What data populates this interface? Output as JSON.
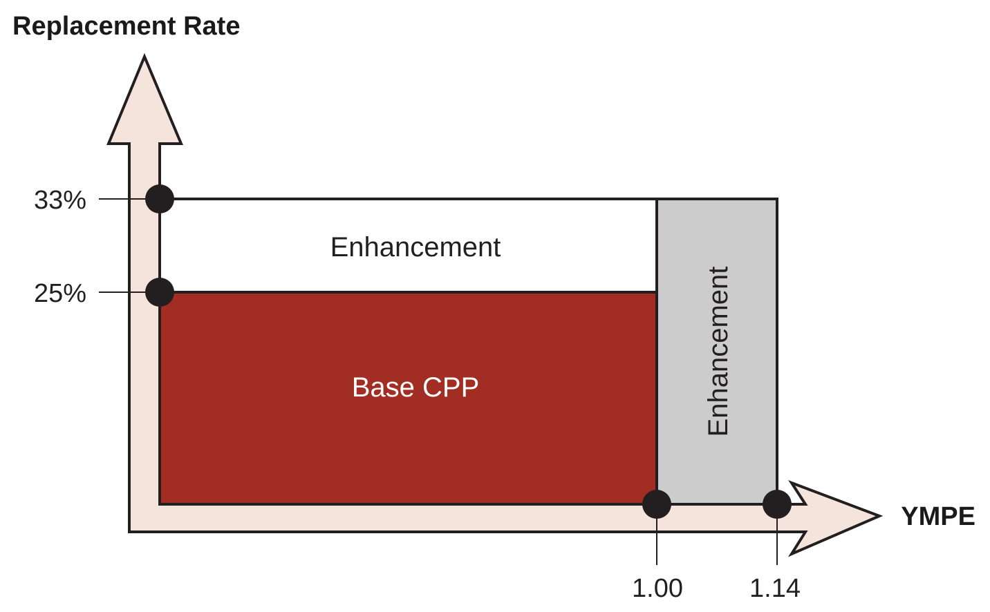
{
  "chart_data": {
    "type": "area",
    "y_axis": {
      "label": "Replacement Rate",
      "ticks": [
        {
          "value": 25,
          "label": "25%"
        },
        {
          "value": 33,
          "label": "33%"
        }
      ]
    },
    "x_axis": {
      "label": "YMPE",
      "ticks": [
        {
          "value": 1.0,
          "label": "1.00"
        },
        {
          "value": 1.14,
          "label": "1.14"
        }
      ]
    },
    "regions": [
      {
        "label": "Base CPP",
        "x_range": [
          0,
          1.0
        ],
        "y_range": [
          0,
          25
        ],
        "color": "#a22d22",
        "text_color": "#ffffff"
      },
      {
        "label": "Enhancement",
        "x_range": [
          0,
          1.0
        ],
        "y_range": [
          25,
          33
        ],
        "color": "#ffffff",
        "text_color": "#231f20"
      },
      {
        "label": "Enhancement",
        "x_range": [
          1.0,
          1.14
        ],
        "y_range": [
          0,
          33
        ],
        "color": "#cccccc",
        "text_color": "#231f20",
        "orientation": "vertical"
      }
    ]
  },
  "colors": {
    "axis_fill": "#f5e4dc",
    "outline": "#231f20",
    "marker": "#231f20"
  }
}
